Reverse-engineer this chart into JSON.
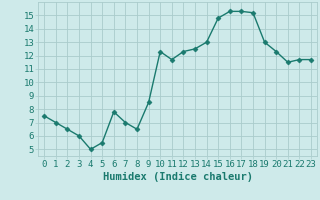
{
  "x": [
    0,
    1,
    2,
    3,
    4,
    5,
    6,
    7,
    8,
    9,
    10,
    11,
    12,
    13,
    14,
    15,
    16,
    17,
    18,
    19,
    20,
    21,
    22,
    23
  ],
  "y": [
    7.5,
    7.0,
    6.5,
    6.0,
    5.0,
    5.5,
    7.8,
    7.0,
    6.5,
    8.5,
    12.3,
    11.7,
    12.3,
    12.5,
    13.0,
    14.8,
    15.3,
    15.3,
    15.2,
    13.0,
    12.3,
    11.5,
    11.7,
    11.7
  ],
  "line_color": "#1a7a6e",
  "marker": "D",
  "marker_size": 2.5,
  "bg_color": "#ceeaea",
  "grid_color": "#aacccc",
  "xlabel": "Humidex (Indice chaleur)",
  "xlim": [
    -0.5,
    23.5
  ],
  "ylim": [
    4.5,
    16.0
  ],
  "yticks": [
    5,
    6,
    7,
    8,
    9,
    10,
    11,
    12,
    13,
    14,
    15
  ],
  "xticks": [
    0,
    1,
    2,
    3,
    4,
    5,
    6,
    7,
    8,
    9,
    10,
    11,
    12,
    13,
    14,
    15,
    16,
    17,
    18,
    19,
    20,
    21,
    22,
    23
  ],
  "tick_color": "#1a7a6e",
  "tick_fontsize": 6.5,
  "xlabel_fontsize": 7.5,
  "linewidth": 1.0
}
